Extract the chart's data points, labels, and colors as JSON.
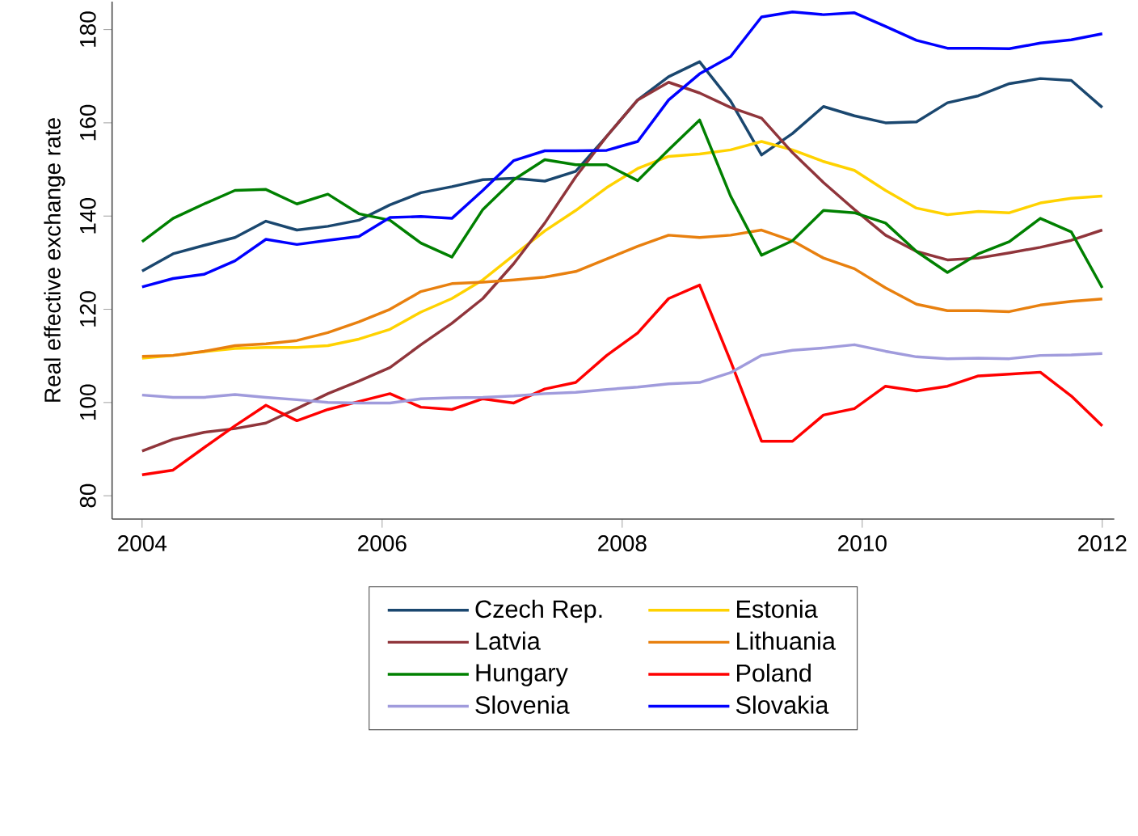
{
  "chart_data": {
    "type": "line",
    "ylabel": "Real effective exchange rate",
    "x": [
      2004,
      2004.258,
      2004.516,
      2004.774,
      2005.032,
      2005.29,
      2005.548,
      2005.806,
      2006.065,
      2006.323,
      2006.581,
      2006.839,
      2007.097,
      2007.355,
      2007.613,
      2007.871,
      2008.129,
      2008.387,
      2008.645,
      2008.903,
      2009.161,
      2009.419,
      2009.677,
      2009.935,
      2010.194,
      2010.452,
      2010.71,
      2010.968,
      2011.226,
      2011.484,
      2011.742,
      2012
    ],
    "xlim": [
      2003.75,
      2012.1
    ],
    "xticks": [
      2004,
      2006,
      2008,
      2010,
      2012
    ],
    "ylim": [
      75,
      186
    ],
    "yticks": [
      80,
      100,
      120,
      140,
      160,
      180
    ],
    "grid": false,
    "legend": "bottom",
    "marker": "none",
    "line_style": "solid",
    "series": [
      {
        "name": "Czech Rep.",
        "color": "#1a476f",
        "values": [
          128.2,
          131.9,
          133.7,
          135.4,
          138.9,
          137.0,
          137.8,
          139.1,
          142.4,
          145.0,
          146.3,
          147.8,
          148.1,
          147.5,
          149.6,
          157.1,
          164.9,
          169.9,
          173.1,
          164.7,
          153.1,
          157.7,
          163.5,
          161.5,
          160.0,
          160.2,
          164.3,
          165.8,
          168.4,
          169.5,
          169.1,
          163.3
        ]
      },
      {
        "name": "Estonia",
        "color": "#ffd200",
        "values": [
          109.5,
          110.1,
          110.9,
          111.6,
          111.8,
          111.8,
          112.2,
          113.6,
          115.7,
          119.4,
          122.3,
          126.3,
          131.6,
          136.8,
          141.2,
          146.1,
          150.2,
          152.8,
          153.3,
          154.2,
          156.0,
          154.2,
          151.7,
          149.8,
          145.5,
          141.7,
          140.3,
          141.0,
          140.7,
          142.8,
          143.8,
          144.3
        ]
      },
      {
        "name": "Latvia",
        "color": "#90353b",
        "values": [
          89.6,
          92.1,
          93.6,
          94.4,
          95.6,
          98.7,
          101.9,
          104.6,
          107.5,
          112.4,
          117.0,
          122.3,
          129.8,
          138.5,
          148.4,
          157.1,
          164.9,
          168.7,
          166.4,
          163.3,
          161.0,
          153.6,
          147.2,
          141.4,
          135.9,
          132.4,
          130.6,
          131.0,
          132.1,
          133.3,
          134.8,
          137.0
        ]
      },
      {
        "name": "Lithuania",
        "color": "#e8800f",
        "values": [
          109.9,
          110.1,
          111.0,
          112.2,
          112.6,
          113.3,
          115.0,
          117.3,
          120.0,
          123.8,
          125.5,
          125.8,
          126.3,
          126.9,
          128.1,
          130.8,
          133.5,
          135.9,
          135.4,
          135.9,
          137.0,
          134.7,
          131.0,
          128.7,
          124.6,
          121.1,
          119.7,
          119.7,
          119.5,
          120.9,
          121.7,
          122.2
        ]
      },
      {
        "name": "Hungary",
        "color": "#008000",
        "values": [
          134.5,
          139.5,
          142.6,
          145.5,
          145.7,
          142.6,
          144.7,
          140.5,
          139.1,
          134.2,
          131.2,
          141.4,
          147.8,
          152.1,
          151.0,
          151.0,
          147.6,
          154.2,
          160.6,
          144.3,
          131.6,
          134.7,
          141.2,
          140.7,
          138.5,
          132.4,
          127.9,
          131.9,
          134.5,
          139.5,
          136.6,
          124.6
        ]
      },
      {
        "name": "Poland",
        "color": "#ff0000",
        "values": [
          84.5,
          85.5,
          90.3,
          95.0,
          99.4,
          96.1,
          98.5,
          100.2,
          101.9,
          99.0,
          98.5,
          100.8,
          99.9,
          102.9,
          104.3,
          110.1,
          114.9,
          122.3,
          125.2,
          108.9,
          91.7,
          91.7,
          97.3,
          98.7,
          103.5,
          102.5,
          103.5,
          105.7,
          106.1,
          106.5,
          101.4,
          95.0
        ]
      },
      {
        "name": "Slovenia",
        "color": "#a09bdc",
        "values": [
          101.6,
          101.1,
          101.1,
          101.7,
          101.1,
          100.6,
          100.0,
          99.9,
          99.9,
          100.8,
          101.0,
          101.1,
          101.4,
          101.9,
          102.2,
          102.8,
          103.3,
          104.0,
          104.3,
          106.4,
          110.1,
          111.2,
          111.7,
          112.4,
          111.0,
          109.8,
          109.4,
          109.5,
          109.4,
          110.1,
          110.2,
          110.5
        ]
      },
      {
        "name": "Slovakia",
        "color": "#0000ff",
        "values": [
          124.8,
          126.6,
          127.5,
          130.4,
          135.0,
          133.9,
          134.8,
          135.6,
          139.7,
          139.9,
          139.5,
          145.5,
          151.9,
          154.0,
          154.0,
          154.1,
          156.0,
          164.9,
          170.5,
          174.2,
          182.7,
          183.8,
          183.2,
          183.6,
          180.7,
          177.7,
          176.0,
          176.0,
          175.9,
          177.1,
          177.8,
          179.1
        ]
      }
    ]
  }
}
